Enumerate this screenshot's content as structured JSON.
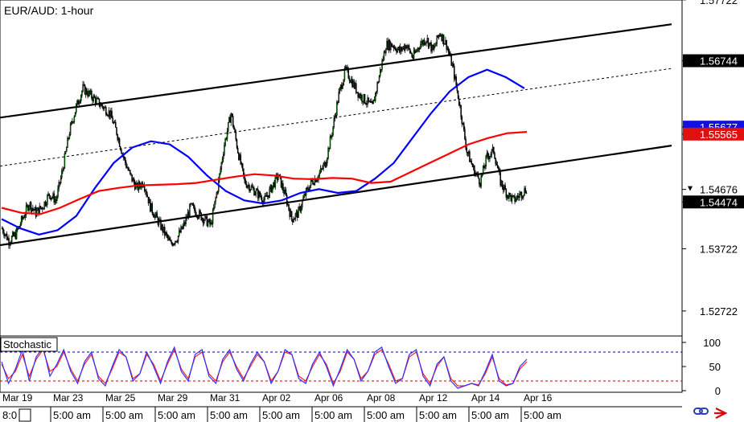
{
  "chart_data": {
    "type": "candlestick",
    "title": "EUR/AUD: 1-hour",
    "price_axis": {
      "ylim": [
        1.5232,
        1.5772
      ],
      "tick_labels": [
        "1.57722",
        "1.56744",
        "1.55677",
        "1.55565",
        "1.54676",
        "1.54474",
        "1.53722",
        "1.52722"
      ],
      "tick_values": [
        1.57722,
        1.56744,
        1.55677,
        1.55565,
        1.54676,
        1.54474,
        1.53722,
        1.52722
      ],
      "highlighted": [
        {
          "label": "1.56744",
          "style": "black"
        },
        {
          "label": "1.55677",
          "style": "blue"
        },
        {
          "label": "1.55565",
          "style": "red"
        },
        {
          "label": "1.54676",
          "style": "outline"
        },
        {
          "label": "1.54474",
          "style": "black"
        }
      ]
    },
    "date_labels": [
      "Mar 19",
      "Mar 23",
      "Mar 25",
      "Mar 29",
      "Mar 31",
      "Apr 02",
      "Apr 06",
      "Apr 08",
      "Apr 12",
      "Apr 14",
      "Apr 16"
    ],
    "time_labels": [
      "8:0",
      "5:00 am",
      "5:00 am",
      "5:00 am",
      "5:00 am",
      "5:00 am",
      "5:00 am",
      "5:00 am",
      "5:00 am",
      "5:00 am",
      "5:00 am"
    ],
    "price_series": [
      1.5405,
      1.5385,
      1.5395,
      1.542,
      1.5445,
      1.543,
      1.544,
      1.546,
      1.545,
      1.55,
      1.556,
      1.56,
      1.563,
      1.562,
      1.561,
      1.56,
      1.559,
      1.556,
      1.552,
      1.549,
      1.547,
      1.548,
      1.544,
      1.542,
      1.54,
      1.538,
      1.539,
      1.541,
      1.544,
      1.543,
      1.542,
      1.541,
      1.547,
      1.554,
      1.559,
      1.553,
      1.548,
      1.547,
      1.546,
      1.545,
      1.547,
      1.549,
      1.546,
      1.542,
      1.543,
      1.546,
      1.548,
      1.549,
      1.551,
      1.556,
      1.562,
      1.566,
      1.564,
      1.562,
      1.561,
      1.56,
      1.565,
      1.57,
      1.57,
      1.569,
      1.57,
      1.568,
      1.57,
      1.571,
      1.569,
      1.572,
      1.57,
      1.566,
      1.56,
      1.553,
      1.55,
      1.548,
      1.552,
      1.553,
      1.548,
      1.546,
      1.545,
      1.546,
      1.547
    ],
    "channel_lines": [
      {
        "name": "upper",
        "from": [
          0,
          1.5583
        ],
        "to": [
          1,
          1.5733
        ]
      },
      {
        "name": "middle",
        "from": [
          0,
          1.5505
        ],
        "to": [
          1,
          1.5662
        ]
      },
      {
        "name": "lower",
        "from": [
          0,
          1.5378
        ],
        "to": [
          1,
          1.5538
        ]
      }
    ],
    "moving_averages": [
      {
        "color": "#0000ff",
        "values": [
          1.542,
          1.5405,
          1.5395,
          1.5402,
          1.5425,
          1.547,
          1.551,
          1.5535,
          1.5545,
          1.554,
          1.552,
          1.549,
          1.5465,
          1.545,
          1.5445,
          1.545,
          1.5462,
          1.5468,
          1.5462,
          1.5465,
          1.5485,
          1.551,
          1.555,
          1.559,
          1.5625,
          1.5648,
          1.566,
          1.5648,
          1.563
        ]
      },
      {
        "color": "#ff0000",
        "values": [
          1.5438,
          1.543,
          1.5428,
          1.5438,
          1.5452,
          1.5465,
          1.547,
          1.5474,
          1.5475,
          1.5476,
          1.5478,
          1.5483,
          1.5488,
          1.5492,
          1.549,
          1.5485,
          1.5484,
          1.5486,
          1.5485,
          1.5478,
          1.548,
          1.5495,
          1.551,
          1.5525,
          1.554,
          1.555,
          1.5558,
          1.556
        ]
      }
    ],
    "stochastic": {
      "label": "Stochastic",
      "ylim": [
        0,
        100
      ],
      "tick_labels": [
        "100",
        "50",
        "0"
      ],
      "levels": [
        80,
        20
      ],
      "k": [
        60,
        15,
        45,
        85,
        20,
        70,
        90,
        30,
        55,
        85,
        40,
        15,
        60,
        80,
        25,
        10,
        50,
        85,
        70,
        20,
        35,
        80,
        50,
        15,
        60,
        90,
        40,
        20,
        75,
        85,
        30,
        15,
        65,
        85,
        45,
        20,
        55,
        80,
        60,
        15,
        40,
        85,
        75,
        25,
        15,
        55,
        80,
        50,
        10,
        45,
        85,
        65,
        20,
        40,
        80,
        90,
        50,
        15,
        25,
        75,
        85,
        30,
        10,
        55,
        70,
        20,
        5,
        10,
        15,
        10,
        40,
        75,
        20,
        10,
        15,
        50,
        65
      ],
      "d": [
        55,
        25,
        40,
        75,
        30,
        65,
        85,
        40,
        50,
        80,
        45,
        20,
        55,
        75,
        30,
        15,
        45,
        80,
        70,
        25,
        35,
        75,
        55,
        20,
        55,
        85,
        45,
        25,
        70,
        80,
        35,
        20,
        60,
        80,
        50,
        25,
        50,
        75,
        60,
        20,
        40,
        80,
        75,
        30,
        20,
        50,
        75,
        55,
        15,
        40,
        80,
        65,
        25,
        40,
        75,
        85,
        55,
        20,
        25,
        70,
        80,
        35,
        15,
        50,
        70,
        25,
        10,
        10,
        15,
        12,
        35,
        70,
        25,
        12,
        15,
        45,
        60
      ]
    },
    "colors": {
      "up": "#00a000",
      "down": "#000000",
      "k_line": "#3030ff",
      "d_line": "#ff2020",
      "level": "#0000a0",
      "level_low": "#c00000"
    }
  },
  "toolbar": {
    "icons": [
      "sync-link-icon",
      "red-arrow-icon"
    ]
  }
}
